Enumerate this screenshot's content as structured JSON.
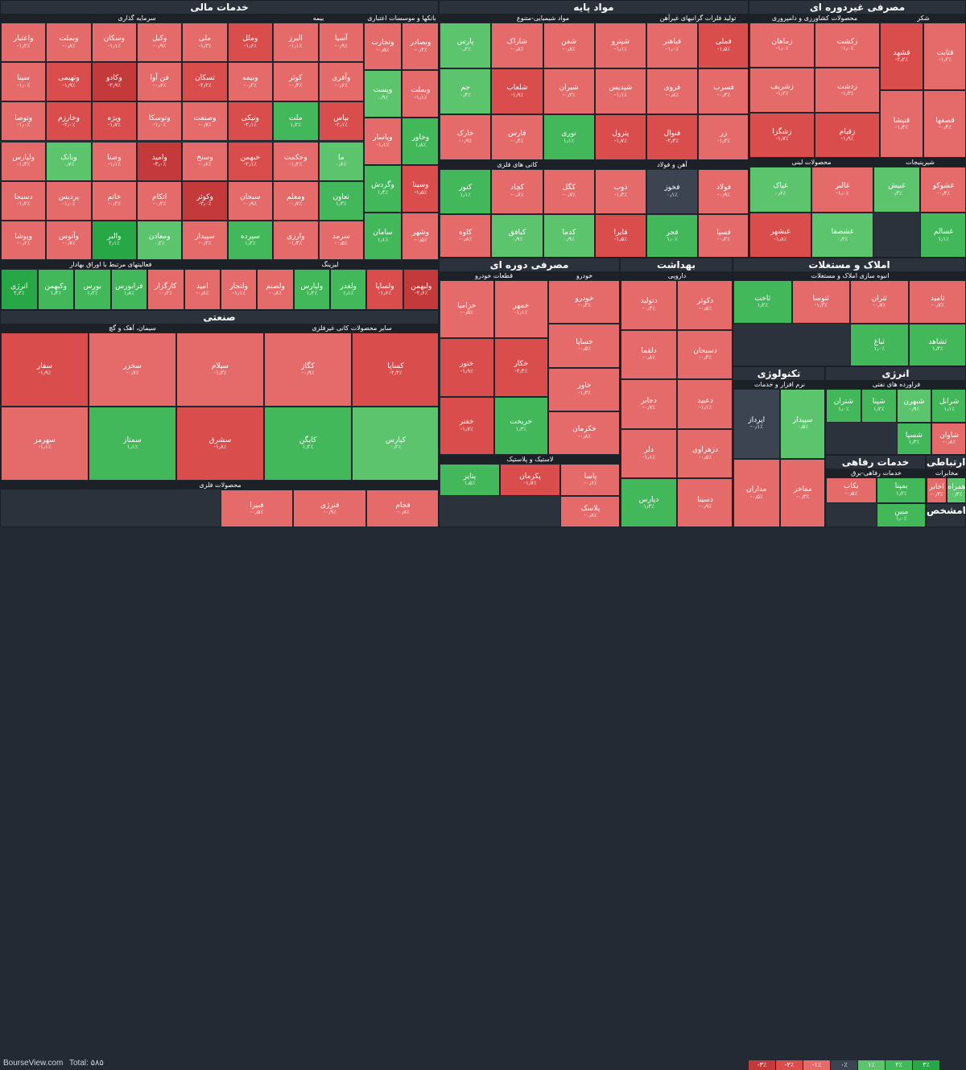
{
  "site": "BourseView.com",
  "total": "Total: ۵۸۵",
  "colors": {
    "legend": [
      "#c43a3a",
      "#d94d4d",
      "#e56a6a",
      "#3b4450",
      "#5bc46c",
      "#42b85a",
      "#27a745"
    ]
  },
  "legend": [
    "-۳٪",
    "-۲٪",
    "-۱٪",
    "۰٪",
    "۱٪",
    "۲٪",
    "۳٪"
  ],
  "chart_data": {
    "type": "heatmap",
    "sectors": [
      {
        "name": "خدمات مالی",
        "groups": [
          {
            "name": "سرمایه گذاری",
            "cells": [
              {
                "s": "وملل",
                "v": -1.6
              },
              {
                "s": "ملی",
                "v": -1.3
              },
              {
                "s": "وکیل",
                "v": -0.9
              },
              {
                "s": "وسکان",
                "v": -1.1
              },
              {
                "s": "وبملت",
                "v": -0.8
              },
              {
                "s": "واعتبار",
                "v": -1.2
              },
              {
                "s": "وبیمه",
                "v": -0.4
              },
              {
                "s": "تسکان",
                "v": -2.2
              },
              {
                "s": "فن آوا",
                "v": -0.6
              },
              {
                "s": "وکادو",
                "v": -2.9
              },
              {
                "s": "وتهیمی",
                "v": -1.9
              },
              {
                "s": "سپنا",
                "v": -1.0
              },
              {
                "s": "ونیکی",
                "v": -2.1
              },
              {
                "s": "وصنعت",
                "v": -0.7
              },
              {
                "s": "وتوسکا",
                "v": -1.0
              },
              {
                "s": "ویژه",
                "v": -1.7
              },
              {
                "s": "وخارزم",
                "v": -2.0
              },
              {
                "s": "وتوصا",
                "v": -1.0
              },
              {
                "s": "خبهمن",
                "v": -2.1
              },
              {
                "s": "وسنخ",
                "v": -0.6
              },
              {
                "s": "وامید",
                "v": -3.0
              },
              {
                "s": "وصنا",
                "v": -1.1
              },
              {
                "s": "وبانک",
                "v": 0.7
              },
              {
                "s": "ولپارس",
                "v": -1.3
              },
              {
                "s": "سبحان",
                "v": -0.9
              },
              {
                "s": "وکوثر",
                "v": -3.0
              },
              {
                "s": "اتکام",
                "v": -0.2
              },
              {
                "s": "خاتم",
                "v": -0.4
              },
              {
                "s": "پردیس",
                "v": -1.0
              },
              {
                "s": "دسبحا",
                "v": -1.2
              },
              {
                "s": "سپرده",
                "v": 1.2
              },
              {
                "s": "سپیدار",
                "v": -0.2
              },
              {
                "s": "ومعادن",
                "v": 0.2
              },
              {
                "s": "والبر",
                "v": 2.1
              },
              {
                "s": "وآتوس",
                "v": -0.7
              },
              {
                "s": "وپوشا",
                "v": -0.6
              }
            ]
          },
          {
            "name": "بیمه",
            "cells": [
              {
                "s": "آسیا",
                "v": -0.9
              },
              {
                "s": "البرز",
                "v": -1.1
              },
              {
                "s": "وآفری",
                "v": -0.6
              },
              {
                "s": "کوثر",
                "v": -0.4
              },
              {
                "s": "بپاس",
                "v": -2.1
              },
              {
                "s": "ملت",
                "v": 1.2
              },
              {
                "s": "ما",
                "v": 0.6
              },
              {
                "s": "وحکمت",
                "v": -1.2
              },
              {
                "s": "تعاون",
                "v": 1.3
              },
              {
                "s": "ومعلم",
                "v": -0.7
              },
              {
                "s": "سرمد",
                "v": -0.5
              },
              {
                "s": "وارزی",
                "v": -1.4
              }
            ]
          },
          {
            "name": "بانکها و موسسات اعتباری",
            "cells": [
              {
                "s": "وبصادر",
                "v": -0.4
              },
              {
                "s": "وتجارت",
                "v": -0.5
              },
              {
                "s": "وبملت",
                "v": -1.1
              },
              {
                "s": "وپست",
                "v": 0.9
              },
              {
                "s": "وخاور",
                "v": 1.8
              },
              {
                "s": "وپاسار",
                "v": -1.1
              },
              {
                "s": "وسینا",
                "v": -1.5
              },
              {
                "s": "وگردش",
                "v": 1.4
              },
              {
                "s": "وشهر",
                "v": -0.5
              },
              {
                "s": "سامان",
                "v": 1.1
              }
            ]
          },
          {
            "name": "فعالیتهای مرتبط با اوراق بهادار",
            "cells": [
              {
                "s": "امید",
                "v": -0.8
              },
              {
                "s": "کارگزار",
                "v": -0.2
              },
              {
                "s": "فرابورس",
                "v": 1.8
              },
              {
                "s": "بورس",
                "v": 1.2
              },
              {
                "s": "وکبهمن",
                "v": 1.4
              },
              {
                "s": "انرژی",
                "v": 2.2
              }
            ]
          },
          {
            "name": "لیزینگ",
            "cells": [
              {
                "s": "ولبهمن",
                "v": -2.6
              },
              {
                "s": "ولساپا",
                "v": -1.6
              },
              {
                "s": "ولغدر",
                "v": 1.1
              },
              {
                "s": "ولپارس",
                "v": 1.2
              },
              {
                "s": "ولصنم",
                "v": -0.8
              },
              {
                "s": "ولتجار",
                "v": -1.1
              }
            ]
          }
        ]
      },
      {
        "name": "مواد پایه",
        "groups": [
          {
            "name": "مواد شیمیایی-متنوع",
            "cells": [
              {
                "s": "شپترو",
                "v": -1.1
              },
              {
                "s": "شفن",
                "v": -0.8
              },
              {
                "s": "شاراک",
                "v": -0.8
              },
              {
                "s": "پارس",
                "v": 0.2
              },
              {
                "s": "شپدیس",
                "v": -1.1
              },
              {
                "s": "شیران",
                "v": -0.2
              },
              {
                "s": "شلعاب",
                "v": -1.9
              },
              {
                "s": "جم",
                "v": 0.4
              },
              {
                "s": "پترول",
                "v": -1.7
              },
              {
                "s": "نوری",
                "v": 1.1
              },
              {
                "s": "فارس",
                "v": -0.4
              },
              {
                "s": "خارک",
                "v": -0.9
              }
            ]
          },
          {
            "name": "تولید فلزات گرانبهای غیرآهن",
            "cells": [
              {
                "s": "فملی",
                "v": -1.5
              },
              {
                "s": "فباهنر",
                "v": -1.0
              },
              {
                "s": "فسرب",
                "v": -0.4
              },
              {
                "s": "فروی",
                "v": -0.8
              },
              {
                "s": "زر",
                "v": -1.3
              },
              {
                "s": "فنوال",
                "v": -2.3
              }
            ]
          },
          {
            "name": "کانی های فلزی",
            "cells": [
              {
                "s": "کگل",
                "v": -0.7
              },
              {
                "s": "کچاد",
                "v": -0.6
              },
              {
                "s": "کنور",
                "v": 1.1
              },
              {
                "s": "کدما",
                "v": 0.9
              },
              {
                "s": "کبافق",
                "v": 0.9
              },
              {
                "s": "کاوه",
                "v": -0.8
              }
            ]
          },
          {
            "name": "آهن و فولاد",
            "cells": [
              {
                "s": "فولاد",
                "v": -0.9
              },
              {
                "s": "فخوز",
                "v": 0.1
              },
              {
                "s": "ذوب",
                "v": -1.3
              },
              {
                "s": "فسپا",
                "v": -0.2
              },
              {
                "s": "فجر",
                "v": 1.0
              },
              {
                "s": "فایرا",
                "v": -1.5
              }
            ]
          }
        ]
      },
      {
        "name": "مصرفی غیردوره ای",
        "groups": [
          {
            "name": "محصولات کشاورزی و دامپروری",
            "cells": [
              {
                "s": "زکشت",
                "v": -1.0
              },
              {
                "s": "زماهان",
                "v": -1.0
              },
              {
                "s": "زدشت",
                "v": -1.3
              },
              {
                "s": "زشریف",
                "v": -1.2
              },
              {
                "s": "زقیام",
                "v": -1.9
              },
              {
                "s": "زشگزا",
                "v": -1.7
              }
            ]
          },
          {
            "name": "شکر",
            "cells": [
              {
                "s": "قثابت",
                "v": -1.2
              },
              {
                "s": "قشهد",
                "v": -2.2
              },
              {
                "s": "قصفها",
                "v": -0.4
              },
              {
                "s": "قنیشا",
                "v": -1.4
              }
            ]
          },
          {
            "name": "محصولات لبنی",
            "cells": [
              {
                "s": "غالبر",
                "v": -1.0
              },
              {
                "s": "غپاک",
                "v": 0.6
              },
              {
                "s": "غشصفا",
                "v": 0.2
              },
              {
                "s": "غبشهر",
                "v": -1.8
              }
            ]
          },
          {
            "name": "شیرینیجات",
            "cells": [
              {
                "s": "غشوکو",
                "v": -0.4
              },
              {
                "s": "غبیش",
                "v": 0.3
              },
              {
                "s": "غسالم",
                "v": 1.1
              }
            ]
          }
        ]
      },
      {
        "name": "مصرفی دوره ای",
        "groups": [
          {
            "name": "قطعات خودرو",
            "cells": [
              {
                "s": "خمهر",
                "v": -1.1
              },
              {
                "s": "خزامیا",
                "v": -0.5
              },
              {
                "s": "خکار",
                "v": -2.4
              },
              {
                "s": "ختور",
                "v": -1.9
              },
              {
                "s": "خریخت",
                "v": 1.3
              },
              {
                "s": "خفنر",
                "v": -1.7
              }
            ]
          },
          {
            "name": "خودرو",
            "cells": [
              {
                "s": "خودرو",
                "v": -0.3
              },
              {
                "s": "خساپا",
                "v": -0.5
              },
              {
                "s": "خاور",
                "v": -1.3
              },
              {
                "s": "خکرمان",
                "v": -0.8
              }
            ]
          },
          {
            "name": "لاستیک و پلاستیک",
            "cells": [
              {
                "s": "پاسا",
                "v": -0.6
              },
              {
                "s": "پکرمان",
                "v": -1.7
              },
              {
                "s": "پتایر",
                "v": 1.5
              },
              {
                "s": "پلاسک",
                "v": -0.8
              }
            ]
          }
        ]
      },
      {
        "name": "بهداشت",
        "groups": [
          {
            "name": "دارویی",
            "cells": [
              {
                "s": "دکوثر",
                "v": -0.5
              },
              {
                "s": "دتولید",
                "v": -0.4
              },
              {
                "s": "دسبحان",
                "v": -0.4
              },
              {
                "s": "دلقما",
                "v": -0.8
              },
              {
                "s": "دعبید",
                "v": -1.1
              },
              {
                "s": "دجابر",
                "v": -0.7
              },
              {
                "s": "دزهراوی",
                "v": -0.5
              },
              {
                "s": "دلر",
                "v": -1.1
              },
              {
                "s": "دسینا",
                "v": -0.9
              },
              {
                "s": "دپارس",
                "v": 1.3
              }
            ]
          }
        ]
      },
      {
        "name": "املاک و مستغلات",
        "groups": [
          {
            "name": "انبوه سازی املاک و مستغلات",
            "cells": [
              {
                "s": "ثامید",
                "v": -0.7
              },
              {
                "s": "ثتران",
                "v": -0.7
              },
              {
                "s": "ثنوسا",
                "v": -1.3
              },
              {
                "s": "ثاخت",
                "v": 1.2
              },
              {
                "s": "ثشاهد",
                "v": 1.4
              },
              {
                "s": "ثباغ",
                "v": 1.0
              }
            ]
          }
        ]
      },
      {
        "name": "صنعتی",
        "groups": [
          {
            "name": "سیمان، آهک و گچ",
            "cells": [
              {
                "s": "سیلام",
                "v": -1.3
              },
              {
                "s": "سخزر",
                "v": -0.7
              },
              {
                "s": "سفار",
                "v": -1.9
              },
              {
                "s": "سشرق",
                "v": -1.8
              },
              {
                "s": "سمتاز",
                "v": 1.1
              },
              {
                "s": "سهرمز",
                "v": -1.1
              }
            ]
          },
          {
            "name": "سایر محصولات کانی غیرفلزی",
            "cells": [
              {
                "s": "کساپا",
                "v": -2.4
              },
              {
                "s": "کگاز",
                "v": -0.9
              },
              {
                "s": "کپارس",
                "v": 0.2
              },
              {
                "s": "کایگن",
                "v": 1.2
              }
            ]
          },
          {
            "name": "محصولات فلزی",
            "cells": [
              {
                "s": "فجام",
                "v": -0.8
              },
              {
                "s": "فنرژی",
                "v": -0.9
              },
              {
                "s": "فبیرا",
                "v": -0.5
              }
            ]
          }
        ]
      },
      {
        "name": "تکنولوژی",
        "groups": [
          {
            "name": "نرم افزار و خدمات",
            "cells": [
              {
                "s": "سپیدار",
                "v": 0.5
              },
              {
                "s": "اپرداز",
                "v": -0.1
              },
              {
                "s": "مفاخر",
                "v": -0.3
              },
              {
                "s": "مداران",
                "v": -0.5
              }
            ]
          }
        ]
      },
      {
        "name": "انرژی",
        "groups": [
          {
            "name": "فراورده های نفتی",
            "cells": [
              {
                "s": "شرانل",
                "v": 1.1
              },
              {
                "s": "شبهرن",
                "v": 0.9
              },
              {
                "s": "شپنا",
                "v": 1.2
              },
              {
                "s": "شتران",
                "v": 1.0
              },
              {
                "s": "شاوان",
                "v": -0.8
              },
              {
                "s": "شسپا",
                "v": 1.3
              }
            ]
          }
        ]
      },
      {
        "name": "خدمات رفاهی",
        "groups": [
          {
            "name": "خدمات رفاهی-برق",
            "cells": [
              {
                "s": "بمپنا",
                "v": 1.2
              },
              {
                "s": "بکاب",
                "v": -0.5
              },
              {
                "s": "مبین",
                "v": 1.0
              }
            ]
          }
        ]
      },
      {
        "name": "ارتباطی",
        "groups": [
          {
            "name": "مخابرات",
            "cells": [
              {
                "s": "همراه",
                "v": 0.4
              },
              {
                "s": "اخابر",
                "v": -0.3
              }
            ]
          }
        ]
      },
      {
        "name": "نامشخص",
        "groups": []
      }
    ]
  }
}
